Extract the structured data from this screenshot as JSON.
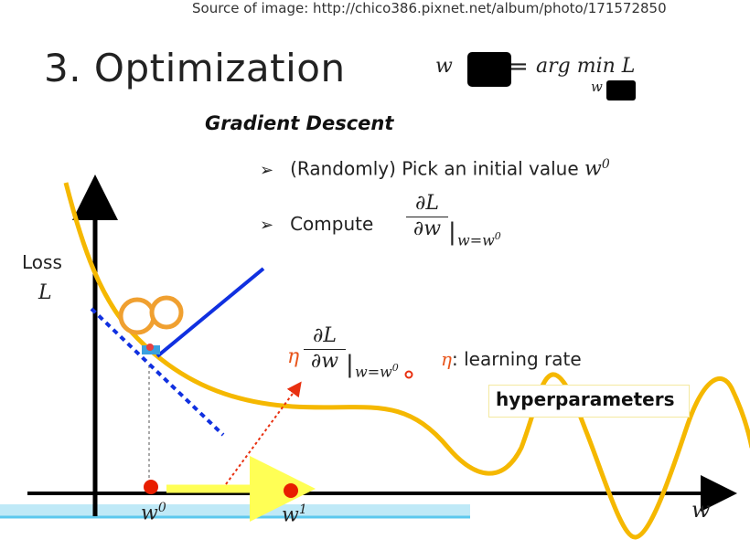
{
  "source_text": "Source of image: http://chico386.pixnet.net/album/photo/171572850",
  "slide_title": "3. Optimization",
  "formula": {
    "lhs": "w",
    "rhs": "arg min L",
    "sub": "w"
  },
  "section_title": "Gradient Descent",
  "bullets": {
    "b1_text": "(Randomly) Pick an initial value ",
    "b1_var": "w",
    "b1_sup": "0",
    "b2_text": "Compute",
    "b2_num": "∂L",
    "b2_den": "∂w",
    "b2_eval": "|",
    "b2_eval_sub": "w=w",
    "b2_eval_sup": "0"
  },
  "step": {
    "eta": "η",
    "num": "∂L",
    "den": "∂w",
    "eval_sub": "w=w",
    "eval_sup": "0",
    "lr_symbol": "η",
    "lr_text": ": learning rate"
  },
  "hyperparameters_label": "hyperparameters",
  "axes": {
    "y_label_1": "Loss",
    "y_label_2": "L",
    "x_label": "w",
    "w0": "w",
    "w0_sup": "0",
    "w1": "w",
    "w1_sup": "1"
  },
  "colors": {
    "curve": "#f5b800",
    "tangent_solid": "#1030e0",
    "tangent_dotted": "#1030e0",
    "point": "#e81e00",
    "move_arrow": "#ffff55",
    "step_arrow": "#e83010",
    "water": "#5cc8ee",
    "eta": "#e8541a"
  }
}
